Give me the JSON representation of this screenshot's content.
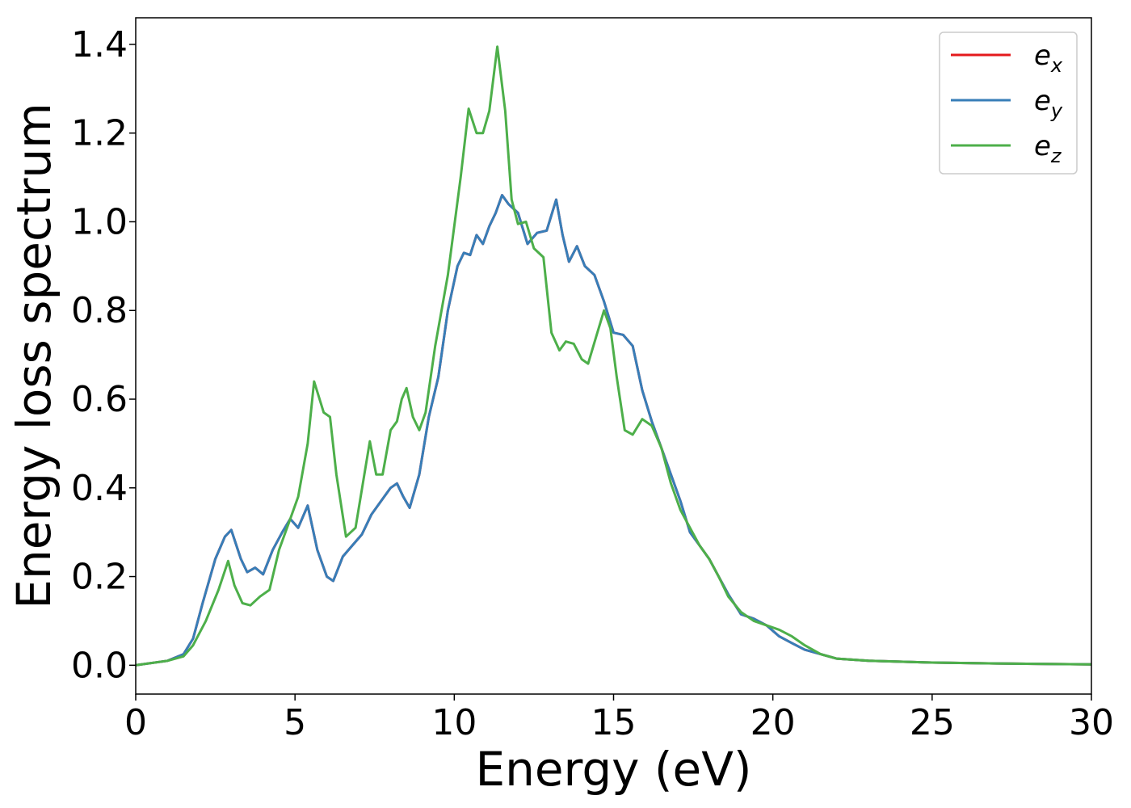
{
  "chart_data": {
    "type": "line",
    "xlabel": "Energy (eV)",
    "ylabel": "Energy loss spectrum",
    "xlim": [
      0,
      30
    ],
    "ylim": [
      -0.065,
      1.46
    ],
    "xticks": [
      0,
      5,
      10,
      15,
      20,
      25,
      30
    ],
    "xtick_labels": [
      "0",
      "5",
      "10",
      "15",
      "20",
      "25",
      "30"
    ],
    "yticks": [
      0.0,
      0.2,
      0.4,
      0.6,
      0.8,
      1.0,
      1.2,
      1.4
    ],
    "ytick_labels": [
      "0.0",
      "0.2",
      "0.4",
      "0.6",
      "0.8",
      "1.0",
      "1.2",
      "1.4"
    ],
    "grid": false,
    "legend_position": "top-right",
    "series": [
      {
        "name": "e_x",
        "label_base": "e",
        "label_sub": "x",
        "color": "#e41a1c",
        "x": [
          0,
          1.0,
          1.5,
          1.8,
          2.1,
          2.5,
          2.8,
          3.0,
          3.3,
          3.5,
          3.75,
          4.0,
          4.3,
          4.6,
          4.85,
          5.1,
          5.4,
          5.7,
          6.0,
          6.2,
          6.5,
          6.8,
          7.1,
          7.4,
          7.7,
          8.0,
          8.2,
          8.4,
          8.6,
          8.9,
          9.2,
          9.5,
          9.8,
          10.1,
          10.3,
          10.5,
          10.7,
          10.9,
          11.1,
          11.3,
          11.5,
          11.7,
          12.0,
          12.3,
          12.6,
          12.9,
          13.2,
          13.4,
          13.6,
          13.85,
          14.1,
          14.4,
          14.7,
          15.0,
          15.3,
          15.6,
          15.9,
          16.2,
          16.5,
          16.8,
          17.1,
          17.4,
          17.7,
          18.0,
          18.3,
          18.6,
          19.0,
          19.4,
          19.8,
          20.2,
          20.6,
          21.0,
          21.5,
          22.0,
          23.0,
          25.0,
          27.0,
          30.0
        ],
        "y": [
          0.0,
          0.01,
          0.025,
          0.06,
          0.14,
          0.24,
          0.29,
          0.305,
          0.24,
          0.21,
          0.22,
          0.205,
          0.26,
          0.3,
          0.33,
          0.31,
          0.36,
          0.26,
          0.2,
          0.19,
          0.245,
          0.27,
          0.295,
          0.34,
          0.37,
          0.4,
          0.41,
          0.38,
          0.355,
          0.43,
          0.56,
          0.65,
          0.8,
          0.9,
          0.93,
          0.925,
          0.97,
          0.95,
          0.99,
          1.02,
          1.06,
          1.04,
          1.02,
          0.95,
          0.975,
          0.98,
          1.05,
          0.97,
          0.91,
          0.945,
          0.9,
          0.88,
          0.82,
          0.75,
          0.745,
          0.72,
          0.62,
          0.55,
          0.49,
          0.43,
          0.37,
          0.3,
          0.27,
          0.24,
          0.2,
          0.16,
          0.115,
          0.105,
          0.09,
          0.065,
          0.05,
          0.035,
          0.025,
          0.015,
          0.01,
          0.006,
          0.004,
          0.002
        ]
      },
      {
        "name": "e_y",
        "label_base": "e",
        "label_sub": "y",
        "color": "#377eb8",
        "x": [
          0,
          1.0,
          1.5,
          1.8,
          2.1,
          2.5,
          2.8,
          3.0,
          3.3,
          3.5,
          3.75,
          4.0,
          4.3,
          4.6,
          4.85,
          5.1,
          5.4,
          5.7,
          6.0,
          6.2,
          6.5,
          6.8,
          7.1,
          7.4,
          7.7,
          8.0,
          8.2,
          8.4,
          8.6,
          8.9,
          9.2,
          9.5,
          9.8,
          10.1,
          10.3,
          10.5,
          10.7,
          10.9,
          11.1,
          11.3,
          11.5,
          11.7,
          12.0,
          12.3,
          12.6,
          12.9,
          13.2,
          13.4,
          13.6,
          13.85,
          14.1,
          14.4,
          14.7,
          15.0,
          15.3,
          15.6,
          15.9,
          16.2,
          16.5,
          16.8,
          17.1,
          17.4,
          17.7,
          18.0,
          18.3,
          18.6,
          19.0,
          19.4,
          19.8,
          20.2,
          20.6,
          21.0,
          21.5,
          22.0,
          23.0,
          25.0,
          27.0,
          30.0
        ],
        "y": [
          0.0,
          0.01,
          0.025,
          0.06,
          0.14,
          0.24,
          0.29,
          0.305,
          0.24,
          0.21,
          0.22,
          0.205,
          0.26,
          0.3,
          0.33,
          0.31,
          0.36,
          0.26,
          0.2,
          0.19,
          0.245,
          0.27,
          0.295,
          0.34,
          0.37,
          0.4,
          0.41,
          0.38,
          0.355,
          0.43,
          0.56,
          0.65,
          0.8,
          0.9,
          0.93,
          0.925,
          0.97,
          0.95,
          0.99,
          1.02,
          1.06,
          1.04,
          1.02,
          0.95,
          0.975,
          0.98,
          1.05,
          0.97,
          0.91,
          0.945,
          0.9,
          0.88,
          0.82,
          0.75,
          0.745,
          0.72,
          0.62,
          0.55,
          0.49,
          0.43,
          0.37,
          0.3,
          0.27,
          0.24,
          0.2,
          0.16,
          0.115,
          0.105,
          0.09,
          0.065,
          0.05,
          0.035,
          0.025,
          0.015,
          0.01,
          0.006,
          0.004,
          0.002
        ]
      },
      {
        "name": "e_z",
        "label_base": "e",
        "label_sub": "z",
        "color": "#4daf4a",
        "x": [
          0,
          1.0,
          1.5,
          1.8,
          2.2,
          2.6,
          2.9,
          3.1,
          3.35,
          3.6,
          3.9,
          4.2,
          4.5,
          4.8,
          5.1,
          5.4,
          5.6,
          5.9,
          6.1,
          6.3,
          6.6,
          6.9,
          7.2,
          7.35,
          7.55,
          7.75,
          8.0,
          8.2,
          8.35,
          8.5,
          8.7,
          8.9,
          9.1,
          9.4,
          9.8,
          10.2,
          10.45,
          10.7,
          10.9,
          11.1,
          11.35,
          11.6,
          11.8,
          12.0,
          12.25,
          12.5,
          12.8,
          13.05,
          13.3,
          13.5,
          13.75,
          14.0,
          14.2,
          14.45,
          14.7,
          14.9,
          15.1,
          15.35,
          15.6,
          15.9,
          16.2,
          16.5,
          16.8,
          17.1,
          17.4,
          17.7,
          18.0,
          18.3,
          18.6,
          19.0,
          19.4,
          19.8,
          20.2,
          20.6,
          21.0,
          21.5,
          22.0,
          23.0,
          25.0,
          27.0,
          30.0
        ],
        "y": [
          0.0,
          0.01,
          0.02,
          0.045,
          0.1,
          0.17,
          0.235,
          0.18,
          0.14,
          0.135,
          0.155,
          0.17,
          0.26,
          0.32,
          0.38,
          0.5,
          0.64,
          0.57,
          0.56,
          0.43,
          0.29,
          0.31,
          0.44,
          0.505,
          0.43,
          0.43,
          0.53,
          0.55,
          0.6,
          0.625,
          0.56,
          0.53,
          0.57,
          0.72,
          0.88,
          1.1,
          1.255,
          1.2,
          1.2,
          1.25,
          1.395,
          1.25,
          1.05,
          0.995,
          1.0,
          0.94,
          0.92,
          0.75,
          0.71,
          0.73,
          0.725,
          0.69,
          0.68,
          0.74,
          0.8,
          0.76,
          0.65,
          0.53,
          0.52,
          0.555,
          0.54,
          0.49,
          0.41,
          0.35,
          0.31,
          0.27,
          0.24,
          0.2,
          0.155,
          0.12,
          0.1,
          0.09,
          0.08,
          0.065,
          0.045,
          0.025,
          0.015,
          0.01,
          0.006,
          0.004,
          0.002
        ]
      }
    ]
  }
}
